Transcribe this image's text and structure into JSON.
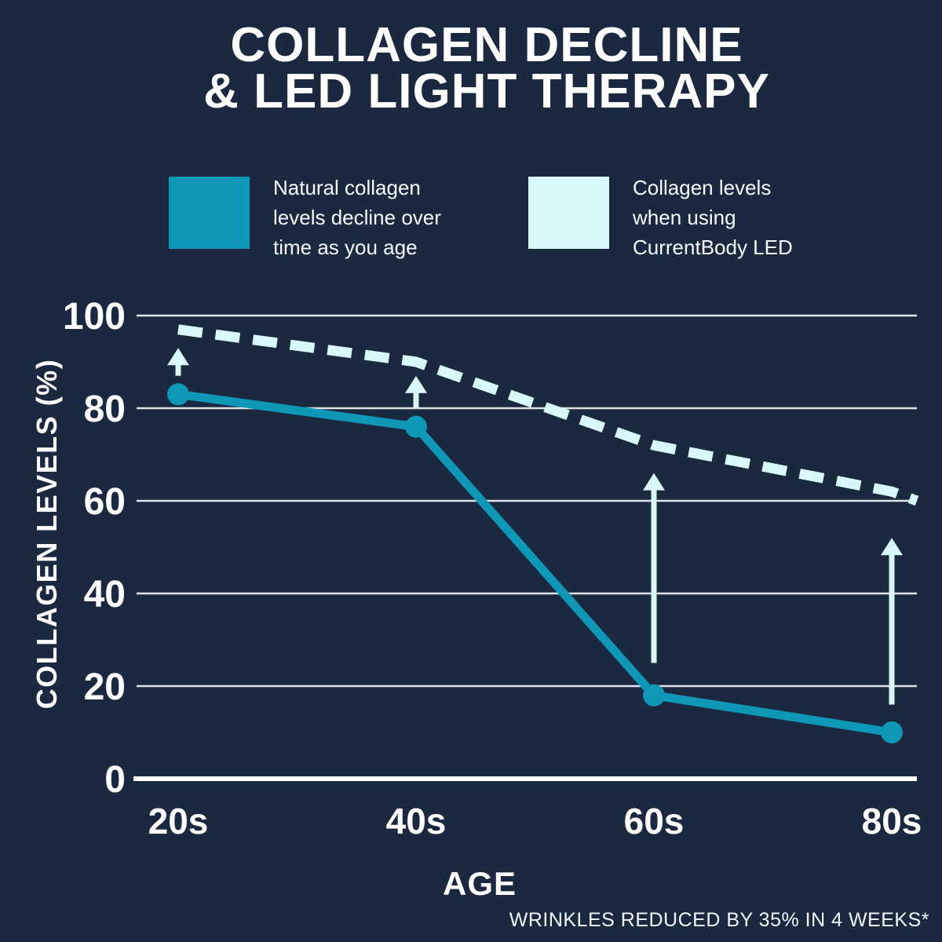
{
  "title": {
    "line1": "COLLAGEN DECLINE",
    "line2": "& LED LIGHT THERAPY"
  },
  "legend": {
    "items": [
      {
        "id": "natural",
        "label": "Natural collagen\nlevels decline over\ntime as you age",
        "swatch_color": "#0f97b8"
      },
      {
        "id": "led",
        "label": "Collagen levels\nwhen using\nCurrentBody LED",
        "swatch_color": "#d9f8fb"
      }
    ]
  },
  "colors": {
    "background": "#1a2840",
    "text": "#ffffff",
    "gridline": "#dfe5ea",
    "axis": "#ffffff",
    "solid_series": "#0f97b8",
    "light_series": "#d9f8fb"
  },
  "chart_data": {
    "type": "line",
    "categories": [
      "20s",
      "40s",
      "60s",
      "80s"
    ],
    "series": [
      {
        "name": "Natural collagen levels decline over time as you age",
        "values": [
          83,
          76,
          18,
          10
        ],
        "color": "#0f97b8",
        "style": "solid",
        "markers": true
      },
      {
        "name": "Collagen levels when using CurrentBody LED",
        "values": [
          97,
          90,
          72,
          62
        ],
        "edge_extension_value": 60,
        "color": "#d9f8fb",
        "style": "dashed",
        "markers": false
      }
    ],
    "improvement_arrows": [
      {
        "category": "20s",
        "from": 87,
        "to": 93
      },
      {
        "category": "40s",
        "from": 80,
        "to": 87
      },
      {
        "category": "60s",
        "from": 25,
        "to": 66
      },
      {
        "category": "80s",
        "from": 16,
        "to": 52
      }
    ],
    "xlabel": "AGE",
    "ylabel": "COLLAGEN LEVELS (%)",
    "yticks": [
      0,
      20,
      40,
      60,
      80,
      100
    ],
    "ylim": [
      0,
      100
    ],
    "grid": "horizontal",
    "legend_position": "top",
    "footnote": "WRINKLES REDUCED BY 35% IN 4 WEEKS*"
  }
}
